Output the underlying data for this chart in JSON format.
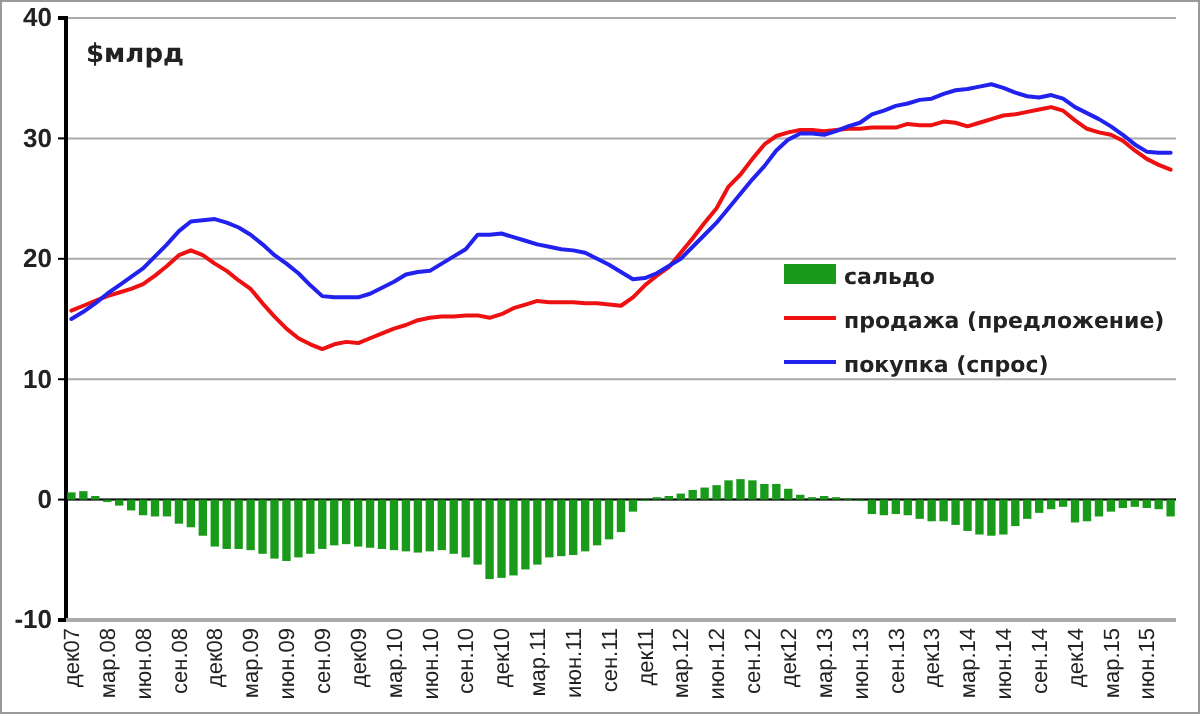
{
  "chart_data": {
    "type": "line",
    "ylabel": "$млрд",
    "categories": [
      "дек07",
      null,
      null,
      "мар.08",
      null,
      null,
      "июн.08",
      null,
      null,
      "сен.08",
      null,
      null,
      "дек08",
      null,
      null,
      "мар.09",
      null,
      null,
      "июн.09",
      null,
      null,
      "сен.09",
      null,
      null,
      "дек09",
      null,
      null,
      "мар.10",
      null,
      null,
      "июн.10",
      null,
      null,
      "сен.10",
      null,
      null,
      "дек10",
      null,
      null,
      "мар.11",
      null,
      null,
      "июн.11",
      null,
      null,
      "сен.11",
      null,
      null,
      "дек11",
      null,
      null,
      "мар.12",
      null,
      null,
      "июн.12",
      null,
      null,
      "сен.12",
      null,
      null,
      "дек12",
      null,
      null,
      "мар.13",
      null,
      null,
      "июн.13",
      null,
      null,
      "сен.13",
      null,
      null,
      "дек13",
      null,
      null,
      "мар.14",
      null,
      null,
      "июн.14",
      null,
      null,
      "сен.14",
      null,
      null,
      "дек14",
      null,
      null,
      "мар.15",
      null,
      null,
      "июн.15",
      null,
      null
    ],
    "series": [
      {
        "name": "сальдо",
        "type": "bar",
        "color": "#1a9a1a",
        "values": [
          0.6,
          0.7,
          0.3,
          -0.2,
          -0.5,
          -0.9,
          -1.3,
          -1.4,
          -1.4,
          -2,
          -2.3,
          -3,
          -3.9,
          -4.1,
          -4.1,
          -4.2,
          -4.5,
          -4.9,
          -5.1,
          -4.8,
          -4.5,
          -4.1,
          -3.8,
          -3.7,
          -3.9,
          -4,
          -4.1,
          -4.2,
          -4.3,
          -4.4,
          -4.3,
          -4.2,
          -4.5,
          -4.8,
          -5.4,
          -6.6,
          -6.5,
          -6.3,
          -5.8,
          -5.4,
          -4.8,
          -4.7,
          -4.6,
          -4.3,
          -3.8,
          -3.3,
          -2.7,
          -1,
          -0.1,
          0.2,
          0.3,
          0.5,
          0.8,
          1,
          1.2,
          1.6,
          1.7,
          1.6,
          1.3,
          1.3,
          0.9,
          0.4,
          0.2,
          0.3,
          0.2,
          0.1,
          -0.1,
          -1.2,
          -1.3,
          -1.2,
          -1.3,
          -1.6,
          -1.8,
          -1.8,
          -2.1,
          -2.6,
          -2.9,
          -3,
          -2.9,
          -2.2,
          -1.6,
          -1.1,
          -0.8,
          -0.6,
          -1.9,
          -1.8,
          -1.4,
          -1,
          -0.7,
          -0.6,
          -0.7,
          -0.8,
          -1.4
        ]
      },
      {
        "name": "продажа (предложение)",
        "color": "#ee1111",
        "values": [
          15.7,
          16.1,
          16.5,
          16.9,
          17.2,
          17.5,
          17.9,
          18.6,
          19.4,
          20.3,
          20.7,
          20.3,
          19.6,
          19,
          18.2,
          17.5,
          16.3,
          15.2,
          14.2,
          13.4,
          12.9,
          12.5,
          12.9,
          13.1,
          13,
          13.4,
          13.8,
          14.2,
          14.5,
          14.9,
          15.1,
          15.2,
          15.2,
          15.3,
          15.3,
          15.1,
          15.4,
          15.9,
          16.2,
          16.5,
          16.4,
          16.4,
          16.4,
          16.3,
          16.3,
          16.2,
          16.1,
          16.8,
          17.8,
          18.6,
          19.3,
          20.5,
          21.7,
          23,
          24.2,
          26,
          27,
          28.3,
          29.5,
          30.2,
          30.5,
          30.7,
          30.7,
          30.6,
          30.7,
          30.8,
          30.8,
          30.9,
          30.9,
          30.9,
          31.2,
          31.1,
          31.1,
          31.4,
          31.3,
          31,
          31.3,
          31.6,
          31.9,
          32,
          32.2,
          32.4,
          32.6,
          32.3,
          31.5,
          30.8,
          30.5,
          30.3,
          29.8,
          29,
          28.3,
          27.8,
          27.4
        ]
      },
      {
        "name": "покупка (спрос)",
        "color": "#2222ee",
        "values": [
          15,
          15.6,
          16.3,
          17.1,
          17.8,
          18.5,
          19.2,
          20.2,
          21.2,
          22.3,
          23.1,
          23.2,
          23.3,
          23,
          22.6,
          22,
          21.2,
          20.3,
          19.6,
          18.8,
          17.8,
          16.9,
          16.8,
          16.8,
          16.8,
          17.1,
          17.6,
          18.1,
          18.7,
          18.9,
          19,
          19.6,
          20.2,
          20.8,
          22,
          22,
          22.1,
          21.8,
          21.5,
          21.2,
          21,
          20.8,
          20.7,
          20.5,
          20,
          19.5,
          18.9,
          18.3,
          18.4,
          18.8,
          19.4,
          20,
          21,
          22,
          23,
          24.2,
          25.4,
          26.6,
          27.7,
          29,
          29.9,
          30.4,
          30.4,
          30.3,
          30.6,
          31,
          31.3,
          32,
          32.3,
          32.7,
          32.9,
          33.2,
          33.3,
          33.7,
          34,
          34.1,
          34.3,
          34.5,
          34.2,
          33.8,
          33.5,
          33.4,
          33.6,
          33.3,
          32.6,
          32.1,
          31.6,
          31,
          30.3,
          29.5,
          28.9,
          28.8,
          28.8
        ]
      }
    ],
    "ylim": [
      -10,
      40
    ],
    "yticks": [
      -10,
      0,
      10,
      20,
      30,
      40
    ],
    "grid": "y",
    "legend": "right"
  }
}
